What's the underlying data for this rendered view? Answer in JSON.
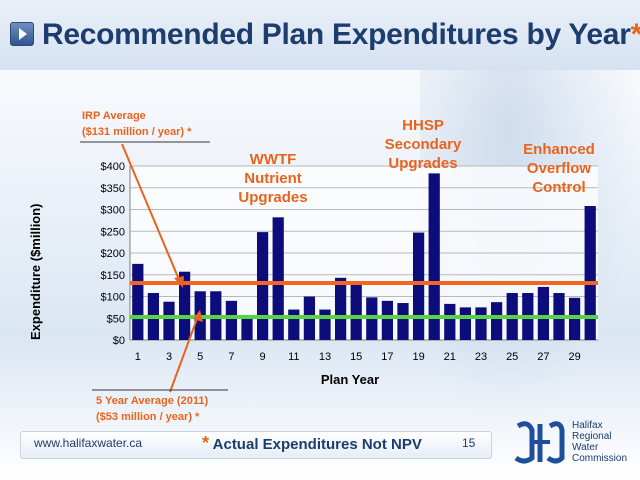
{
  "slide": {
    "title": "Recommended Plan Expenditures by Year",
    "title_star": "*",
    "irp_note_line1": "IRP Average",
    "irp_note_line2": "($131 million / year) *",
    "five_year_note_line1": "5 Year Average (2011)",
    "five_year_note_line2": "($53 million / year) *",
    "annotations": {
      "wwtf": "WWTF Nutrient Upgrades",
      "hhsp": "HHSP Secondary Upgrades",
      "overflow": "Enhanced Overflow Control"
    },
    "footer": {
      "url": "www.halifaxwater.ca",
      "footnote_star": "*",
      "footnote": "Actual Expenditures Not NPV",
      "page": "15"
    },
    "logo": {
      "line1": "Halifax",
      "line2": "Regional",
      "line3": "Water",
      "line4": "Commission"
    }
  },
  "colors": {
    "title": "#1d3d6e",
    "accent": "#e8641e",
    "bar": "#0c0c7a",
    "irp_line": "#f26522",
    "five_year_line": "#55d445"
  },
  "chart_data": {
    "type": "bar",
    "xlabel": "Plan Year",
    "ylabel": "Expenditure ($million)",
    "ylim": [
      0,
      400
    ],
    "ytick_labels": [
      "$0",
      "$50",
      "$100",
      "$150",
      "$200",
      "$250",
      "$300",
      "$350",
      "$400"
    ],
    "yticks": [
      0,
      50,
      100,
      150,
      200,
      250,
      300,
      350,
      400
    ],
    "xtick_labels": [
      "1",
      "3",
      "5",
      "7",
      "9",
      "11",
      "13",
      "15",
      "17",
      "19",
      "21",
      "23",
      "25",
      "27",
      "29"
    ],
    "categories": [
      1,
      2,
      3,
      4,
      5,
      6,
      7,
      8,
      9,
      10,
      11,
      12,
      13,
      14,
      15,
      16,
      17,
      18,
      19,
      20,
      21,
      22,
      23,
      24,
      25,
      26,
      27,
      28,
      29,
      30
    ],
    "values": [
      175,
      108,
      88,
      157,
      112,
      112,
      90,
      50,
      248,
      282,
      70,
      100,
      70,
      143,
      128,
      98,
      90,
      85,
      247,
      383,
      83,
      75,
      75,
      87,
      108,
      108,
      122,
      108,
      97,
      308
    ],
    "reference_lines": [
      {
        "name": "IRP Average",
        "value": 131
      },
      {
        "name": "5 Year Average (2011)",
        "value": 53
      }
    ],
    "grid": true
  }
}
